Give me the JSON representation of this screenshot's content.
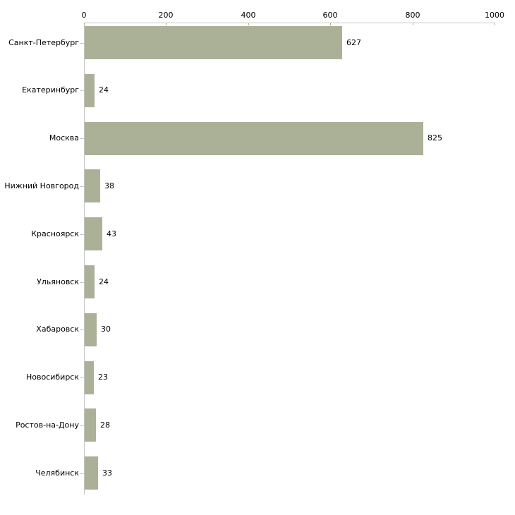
{
  "chart_data": {
    "type": "bar",
    "orientation": "horizontal",
    "title": "",
    "xlabel": "",
    "ylabel": "",
    "categories": [
      "Санкт-Петербург",
      "Екатеринбург",
      "Москва",
      "Нижний Новгород",
      "Красноярск",
      "Ульяновск",
      "Хабаровск",
      "Новосибирск",
      "Ростов-на-Дону",
      "Челябинск"
    ],
    "values": [
      627,
      24,
      825,
      38,
      43,
      24,
      30,
      23,
      28,
      33
    ],
    "value_labels": [
      "627",
      "24",
      "825",
      "38",
      "43",
      "24",
      "30",
      "23",
      "28",
      "33"
    ],
    "xlim": [
      0,
      1000
    ],
    "x_ticks": [
      0,
      200,
      400,
      600,
      800,
      1000
    ],
    "x_tick_labels": [
      "0",
      "200",
      "400",
      "600",
      "800",
      "1000"
    ],
    "x_axis_position": "top",
    "grid": false,
    "legend": false,
    "colors": {
      "bar_fill": "#abb197",
      "axis_line": "#c4c4c4",
      "x_tick_mark": "#b1b28a",
      "y_tick_mark": "#c9c9c9",
      "text": "#000000",
      "background": "#ffffff"
    }
  }
}
